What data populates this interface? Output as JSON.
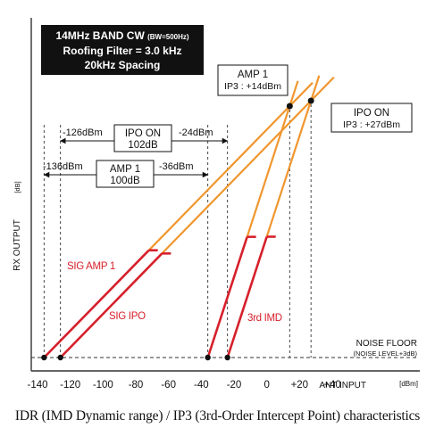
{
  "caption": "IDR (IMD Dynamic range) / IP3 (3rd-Order Intercept Point) characteristics",
  "watermark": "© ···",
  "chart_data": {
    "type": "line",
    "title_box": {
      "line1": "14MHz BAND CW",
      "line1_small": "(BW=500Hz)",
      "line2": "Roofing Filter = 3.0 kHz",
      "line3": "20kHz Spacing"
    },
    "xlabel": "ANT INPUT",
    "xunit": "[dBm]",
    "ylabel": "RX OUTPUT",
    "yunit": "[dB]",
    "xlim": [
      -140,
      40
    ],
    "x_ticks": [
      -140,
      -120,
      -100,
      -80,
      -60,
      -40,
      -20,
      0,
      20,
      40
    ],
    "x_tick_labels": [
      "-140",
      "-120",
      "-100",
      "-80",
      "-60",
      "-40",
      "-20",
      "0",
      "+20",
      "+40"
    ],
    "colors": {
      "signal": "#d6202b",
      "extrapolation": "#f0962e",
      "title_box_bg": "#111111",
      "axis": "#333333"
    },
    "noise_floor": {
      "label": "NOISE FLOOR",
      "sublabel": "(NOISE LEVEL+3dB)"
    },
    "series": [
      {
        "name": "SIG AMP 1",
        "kind": "fundamental",
        "start_x": -136,
        "measured_end_x": -72,
        "extrapolated_to_x": 14
      },
      {
        "name": "SIG IPO",
        "kind": "fundamental",
        "start_x": -126,
        "measured_end_x": -64,
        "extrapolated_to_x": 27
      },
      {
        "name": "3rd IMD",
        "kind": "imd_amp1",
        "start_x": -36,
        "measured_end_x": -12,
        "extrapolated_to_x": 14
      },
      {
        "name": "",
        "kind": "imd_ipo",
        "start_x": -24,
        "measured_end_x": 0,
        "extrapolated_to_x": 27
      }
    ],
    "intercepts": [
      {
        "label_line1": "AMP 1",
        "label_line2": "IP3 : +14dBm",
        "x": 14
      },
      {
        "label_line1": "IPO ON",
        "label_line2": "IP3 : +27dBm",
        "x": 27
      }
    ],
    "dynamic_ranges": [
      {
        "label_line1": "IPO ON",
        "label_line2": "102dB",
        "left_label": "-126dBm",
        "right_label": "-24dBm",
        "from_x": -126,
        "to_x": -24
      },
      {
        "label_line1": "AMP 1",
        "label_line2": "100dB",
        "left_label": "-136dBm",
        "right_label": "-36dBm",
        "from_x": -136,
        "to_x": -36
      }
    ]
  }
}
